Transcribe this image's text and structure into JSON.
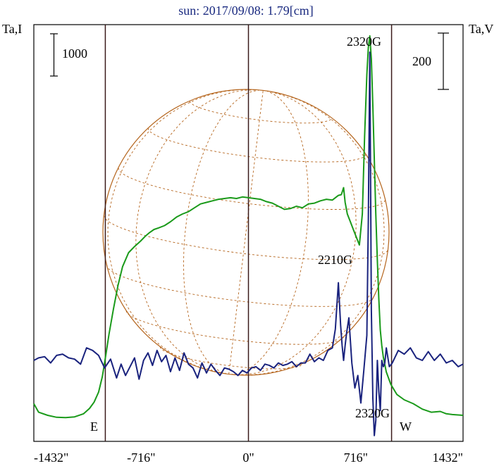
{
  "chart_data": {
    "type": "line",
    "title": "sun: 2017/09/08: 1.79[cm]",
    "left_axis_label": "Ta,I",
    "right_axis_label": "Ta,V",
    "left_scale_bar": "1000",
    "right_scale_bar": "200",
    "x_ticks": [
      {
        "value": -1432,
        "label": "-1432\""
      },
      {
        "value": -716,
        "label": "-716\""
      },
      {
        "value": 0,
        "label": "0\""
      },
      {
        "value": 716,
        "label": "716\""
      },
      {
        "value": 1432,
        "label": "1432\""
      }
    ],
    "xlim": [
      -1432,
      1432
    ],
    "vertical_lines": [
      -955,
      0,
      955
    ],
    "limb_labels": {
      "east": "E",
      "west": "W"
    },
    "annotations": [
      {
        "text": "2320G",
        "x": 800,
        "position": "top"
      },
      {
        "text": "2210G",
        "x": 620,
        "position": "above-peak"
      },
      {
        "text": "2320G",
        "x": 880,
        "position": "below-dip"
      }
    ],
    "series": [
      {
        "axis": "left",
        "color": "#1a9a1a",
        "x": [
          -1432,
          -1400,
          -1340,
          -1280,
          -1220,
          -1160,
          -1100,
          -1060,
          -1030,
          -1000,
          -975,
          -960,
          -950,
          -930,
          -900,
          -870,
          -840,
          -800,
          -760,
          -720,
          -690,
          -660,
          -630,
          -600,
          -560,
          -520,
          -480,
          -440,
          -400,
          -360,
          -320,
          -280,
          -240,
          -200,
          -160,
          -120,
          -80,
          -40,
          0,
          40,
          80,
          120,
          160,
          200,
          240,
          280,
          320,
          360,
          400,
          440,
          480,
          520,
          560,
          600,
          620,
          635,
          645,
          660,
          680,
          700,
          720,
          740,
          760,
          775,
          790,
          800,
          810,
          820,
          830,
          840,
          850,
          860,
          870,
          880,
          890,
          900,
          920,
          950,
          990,
          1040,
          1100,
          1160,
          1220,
          1280,
          1320,
          1360,
          1400,
          1432
        ],
        "values": [
          350,
          240,
          200,
          175,
          170,
          180,
          220,
          290,
          370,
          500,
          700,
          880,
          1000,
          1250,
          1580,
          1880,
          2120,
          2300,
          2380,
          2450,
          2510,
          2560,
          2600,
          2620,
          2650,
          2700,
          2760,
          2800,
          2830,
          2880,
          2930,
          2950,
          2970,
          2990,
          3000,
          3010,
          3000,
          3020,
          3010,
          3000,
          2990,
          2960,
          2940,
          2900,
          2860,
          2870,
          2900,
          2880,
          2930,
          2940,
          2970,
          2990,
          2980,
          3040,
          3050,
          3140,
          2950,
          2800,
          2700,
          2600,
          2500,
          2400,
          2800,
          3800,
          4600,
          4950,
          5100,
          4800,
          4200,
          3500,
          2800,
          2200,
          1700,
          1300,
          1100,
          950,
          760,
          600,
          470,
          400,
          350,
          280,
          240,
          250,
          220,
          210,
          205,
          200
        ]
      },
      {
        "axis": "right",
        "color": "#1a237e",
        "x": [
          -1432,
          -1400,
          -1360,
          -1320,
          -1280,
          -1240,
          -1200,
          -1160,
          -1120,
          -1080,
          -1040,
          -1000,
          -960,
          -920,
          -880,
          -850,
          -820,
          -790,
          -760,
          -730,
          -700,
          -670,
          -640,
          -610,
          -580,
          -550,
          -520,
          -490,
          -460,
          -430,
          -400,
          -370,
          -340,
          -310,
          -280,
          -250,
          -220,
          -190,
          -160,
          -130,
          -100,
          -70,
          -40,
          -10,
          20,
          50,
          80,
          110,
          140,
          170,
          200,
          230,
          260,
          290,
          320,
          350,
          380,
          410,
          440,
          470,
          500,
          530,
          560,
          580,
          600,
          615,
          625,
          635,
          645,
          655,
          670,
          690,
          710,
          730,
          750,
          770,
          790,
          800,
          810,
          820,
          830,
          840,
          850,
          860,
          870,
          880,
          890,
          900,
          910,
          920,
          940,
          960,
          1000,
          1040,
          1080,
          1120,
          1160,
          1200,
          1240,
          1280,
          1320,
          1360,
          1400,
          1432
        ],
        "values": [
          0,
          2,
          3,
          -2,
          4,
          5,
          2,
          1,
          -3,
          10,
          8,
          4,
          -6,
          1,
          -14,
          -3,
          -12,
          -5,
          2,
          -15,
          0,
          6,
          -4,
          8,
          -1,
          4,
          -9,
          2,
          -8,
          6,
          -3,
          -6,
          -14,
          -2,
          -10,
          -3,
          -8,
          -12,
          -6,
          -7,
          -9,
          -12,
          -8,
          -10,
          -6,
          -5,
          -8,
          -3,
          -4,
          -6,
          -2,
          -4,
          -3,
          -1,
          -5,
          -2,
          -2,
          5,
          -1,
          2,
          0,
          8,
          10,
          25,
          62,
          28,
          12,
          0,
          12,
          22,
          34,
          -2,
          -22,
          -12,
          -34,
          -8,
          20,
          112,
          246,
          40,
          -30,
          -60,
          -48,
          0,
          -25,
          -40,
          0,
          -5,
          -2,
          10,
          -5,
          -2,
          8,
          5,
          10,
          2,
          0,
          7,
          0,
          5,
          -2,
          0,
          -5,
          -3
        ]
      }
    ]
  }
}
